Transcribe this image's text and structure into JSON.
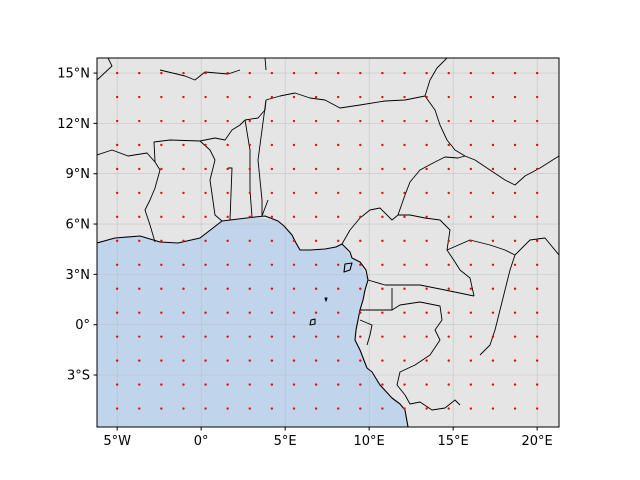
{
  "chart_data": {
    "type": "scatter",
    "projection": "PlateCarree",
    "xlim": [
      -6.2,
      21.3
    ],
    "ylim": [
      -6.1,
      15.9
    ],
    "x_ticks": [
      {
        "value": -5,
        "label": "5°W"
      },
      {
        "value": 0,
        "label": "0°"
      },
      {
        "value": 5,
        "label": "5°E"
      },
      {
        "value": 10,
        "label": "10°E"
      },
      {
        "value": 15,
        "label": "15°E"
      },
      {
        "value": 20,
        "label": "20°E"
      }
    ],
    "y_ticks": [
      {
        "value": -3,
        "label": "3°S"
      },
      {
        "value": 0,
        "label": "0°"
      },
      {
        "value": 3,
        "label": "3°N"
      },
      {
        "value": 6,
        "label": "6°N"
      },
      {
        "value": 9,
        "label": "9°N"
      },
      {
        "value": 12,
        "label": "12°N"
      },
      {
        "value": 15,
        "label": "15°N"
      }
    ],
    "grid": true,
    "points": {
      "lon_start": -5,
      "lon_step": 1.3157895,
      "lon_count": 20,
      "lat_start": -5,
      "lat_step": 1.4285714,
      "lat_count": 15,
      "color": "#ff0000"
    },
    "colors": {
      "land": "#e5e5e5",
      "ocean": "#c0d4ec",
      "coastline": "#000000",
      "grid": "#b8b8b8"
    }
  }
}
